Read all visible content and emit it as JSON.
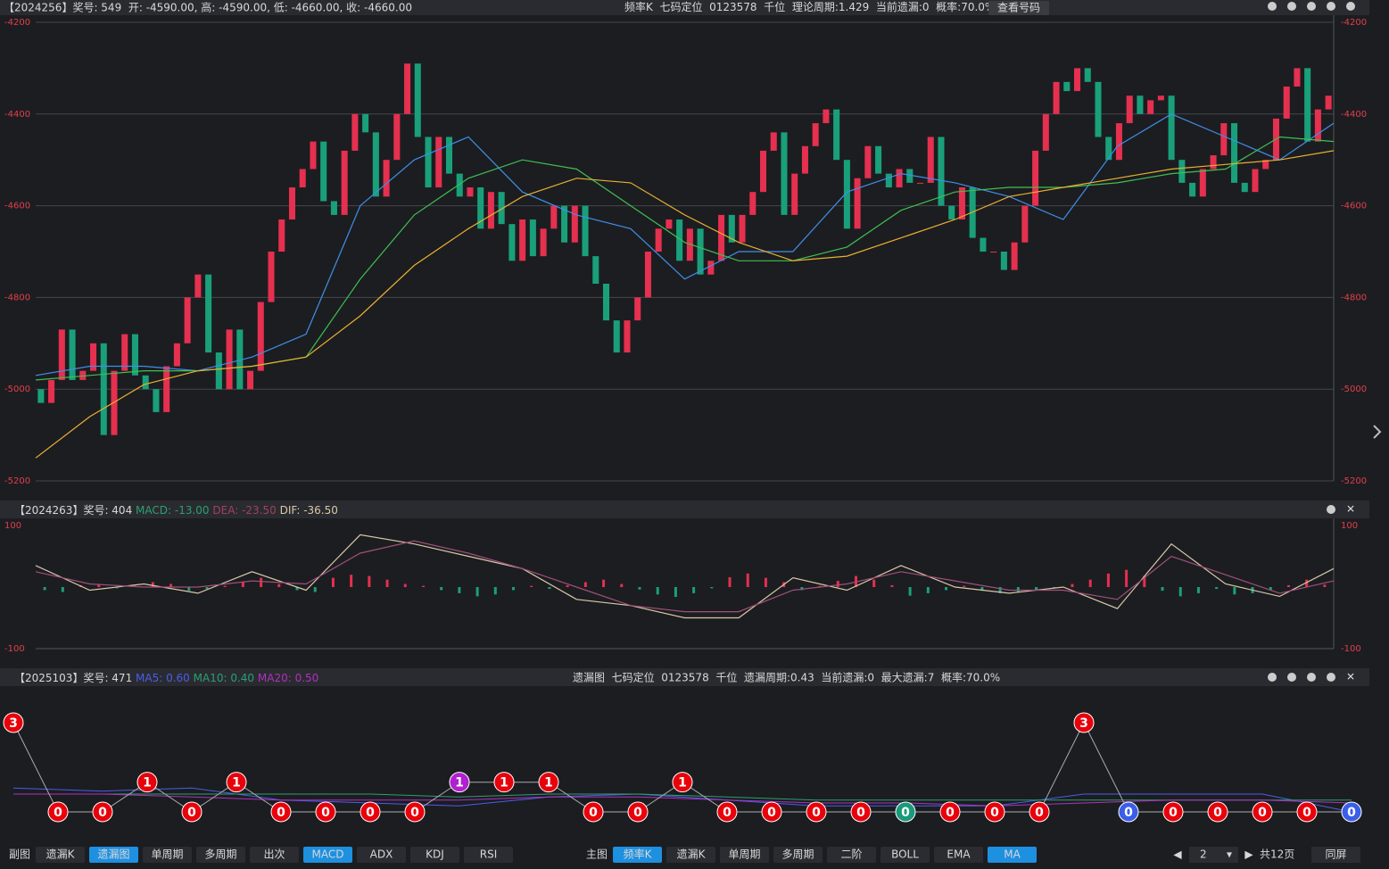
{
  "panels": [
    {
      "left": [
        "【2024256】奖号: 549  开: -4590.00, 高: -4590.00, 低: -4660.00, 收: -4660.00"
      ],
      "center": "频率K  七码定位  0123578  千位  理论周期:1.429  当前遗漏:0  概率:70.0%",
      "button": "查看号码"
    },
    {
      "left": [
        "【2024263】奖号: 404",
        "MACD: -13.00",
        "DEA: -23.50",
        "DIF: -36.50"
      ]
    },
    {
      "left": [
        "【2025103】奖号: 471",
        "MA5: 0.60",
        "MA10: 0.40",
        "MA20: 0.50"
      ],
      "center": "遗漏图  七码定位  0123578  千位  遗漏周期:0.43  当前遗漏:0  最大遗漏:7  概率:70.0%"
    }
  ],
  "chart_data": [
    {
      "type": "candlestick",
      "ylim": [
        -5200,
        -4200
      ],
      "yticks": [
        -4200,
        -4400,
        -4600,
        -4800,
        -5000,
        -5200
      ],
      "grid": true,
      "up_color": "#e5304f",
      "down_color": "#19a07a",
      "open": [
        -5000,
        -5030,
        -4980,
        -4870,
        -4980,
        -4960,
        -4900,
        -5100,
        -4960,
        -4880,
        -4970,
        -5000,
        -5050,
        -4950,
        -4900,
        -4800,
        -4750,
        -4920,
        -5000,
        -4870,
        -5000,
        -4960,
        -4810,
        -4700,
        -4630,
        -4560,
        -4520,
        -4460,
        -4590,
        -4620,
        -4480,
        -4400,
        -4440,
        -4580,
        -4500,
        -4400,
        -4290,
        -4450,
        -4560,
        -4450,
        -4530,
        -4580,
        -4560,
        -4650,
        -4570,
        -4640,
        -4720,
        -4630,
        -4710,
        -4650,
        -4600,
        -4680,
        -4600,
        -4710,
        -4770,
        -4850,
        -4920,
        -4850,
        -4800,
        -4700,
        -4650,
        -4630,
        -4720,
        -4650,
        -4750,
        -4720,
        -4620,
        -4680,
        -4620,
        -4570,
        -4480,
        -4440,
        -4620,
        -4530,
        -4470,
        -4420,
        -4390,
        -4500,
        -4650,
        -4540,
        -4470,
        -4530,
        -4560,
        -4520,
        -4550,
        -4550,
        -4450,
        -4600,
        -4630,
        -4560,
        -4670,
        -4700,
        -4700,
        -4740,
        -4680,
        -4600,
        -4480,
        -4400,
        -4330,
        -4350,
        -4300,
        -4330,
        -4450,
        -4500,
        -4420,
        -4360,
        -4400,
        -4370,
        -4360,
        -4500,
        -4550,
        -4580,
        -4520,
        -4490,
        -4420,
        -4550,
        -4570,
        -4520,
        -4500,
        -4410,
        -4340,
        -4300,
        -4460,
        -4390
      ],
      "close": [
        -5030,
        -4980,
        -4870,
        -4980,
        -4960,
        -4900,
        -5100,
        -4960,
        -4880,
        -4970,
        -5000,
        -5050,
        -4950,
        -4900,
        -4800,
        -4750,
        -4920,
        -5000,
        -4870,
        -5000,
        -4960,
        -4810,
        -4700,
        -4630,
        -4560,
        -4520,
        -4460,
        -4590,
        -4620,
        -4480,
        -4400,
        -4440,
        -4580,
        -4500,
        -4400,
        -4290,
        -4450,
        -4560,
        -4450,
        -4530,
        -4580,
        -4560,
        -4650,
        -4570,
        -4640,
        -4720,
        -4630,
        -4710,
        -4650,
        -4600,
        -4680,
        -4600,
        -4710,
        -4770,
        -4850,
        -4920,
        -4850,
        -4800,
        -4700,
        -4650,
        -4630,
        -4720,
        -4650,
        -4750,
        -4720,
        -4620,
        -4680,
        -4620,
        -4570,
        -4480,
        -4440,
        -4620,
        -4530,
        -4470,
        -4420,
        -4390,
        -4500,
        -4650,
        -4540,
        -4470,
        -4530,
        -4560,
        -4520,
        -4550,
        -4550,
        -4450,
        -4600,
        -4630,
        -4560,
        -4670,
        -4700,
        -4700,
        -4740,
        -4680,
        -4600,
        -4480,
        -4400,
        -4330,
        -4350,
        -4300,
        -4330,
        -4450,
        -4500,
        -4420,
        -4360,
        -4400,
        -4370,
        -4360,
        -4500,
        -4550,
        -4580,
        -4520,
        -4490,
        -4420,
        -4550,
        -4570,
        -4520,
        -4500,
        -4410,
        -4340,
        -4300,
        -4460,
        -4390,
        -4360
      ],
      "lines": [
        {
          "color": "#3f8fe8",
          "values": [
            -4970,
            -4950,
            -4950,
            -4960,
            -4930,
            -4880,
            -4600,
            -4500,
            -4450,
            -4570,
            -4620,
            -4650,
            -4760,
            -4700,
            -4700,
            -4570,
            -4530,
            -4550,
            -4580,
            -4630,
            -4470,
            -4400,
            -4450,
            -4500,
            -4420
          ]
        },
        {
          "color": "#3fc050",
          "values": [
            -4980,
            -4970,
            -4960,
            -4960,
            -4950,
            -4930,
            -4760,
            -4620,
            -4540,
            -4500,
            -4520,
            -4600,
            -4680,
            -4720,
            -4720,
            -4690,
            -4610,
            -4570,
            -4560,
            -4560,
            -4550,
            -4530,
            -4520,
            -4450,
            -4460
          ]
        },
        {
          "color": "#e8b030",
          "values": [
            -5150,
            -5060,
            -4990,
            -4960,
            -4950,
            -4930,
            -4840,
            -4730,
            -4650,
            -4580,
            -4540,
            -4550,
            -4620,
            -4680,
            -4720,
            -4710,
            -4670,
            -4630,
            -4580,
            -4560,
            -4540,
            -4520,
            -4510,
            -4500,
            -4480
          ]
        }
      ]
    },
    {
      "type": "macd",
      "ylim": [
        -100,
        100
      ],
      "yticks": [
        100,
        -100
      ],
      "up_color": "#e5304f",
      "down_color": "#19a07a",
      "values": [
        -5,
        -8,
        3,
        5,
        -2,
        2,
        8,
        5,
        -6,
        -3,
        2,
        8,
        15,
        5,
        -5,
        -8,
        15,
        20,
        18,
        12,
        5,
        2,
        -5,
        -10,
        -15,
        -12,
        -5,
        2,
        -3,
        3,
        8,
        12,
        5,
        -4,
        -12,
        -16,
        -10,
        -2,
        16,
        22,
        15,
        8,
        -5,
        2,
        10,
        18,
        12,
        3,
        -14,
        -10,
        -5,
        2,
        -6,
        -10,
        -8,
        -5,
        -2,
        5,
        12,
        22,
        28,
        18,
        -6,
        -15,
        -10,
        -3,
        -12,
        -10,
        -5,
        3,
        12,
        4
      ],
      "series": [
        {
          "color": "#d8c8a8",
          "values": [
            35,
            -5,
            5,
            -10,
            25,
            -5,
            85,
            70,
            50,
            30,
            -20,
            -30,
            -50,
            -50,
            15,
            -5,
            35,
            0,
            -10,
            0,
            -35,
            70,
            5,
            -15,
            30
          ]
        },
        {
          "color": "#a0507a",
          "values": [
            25,
            5,
            0,
            0,
            10,
            5,
            55,
            75,
            55,
            30,
            0,
            -30,
            -40,
            -40,
            -5,
            5,
            25,
            10,
            -5,
            -5,
            -20,
            50,
            20,
            -10,
            10
          ]
        }
      ]
    },
    {
      "type": "miss",
      "ylim": [
        0,
        3
      ],
      "values": [
        3,
        0,
        0,
        1,
        0,
        1,
        0,
        0,
        0,
        0,
        1,
        1,
        1,
        0,
        0,
        1,
        0,
        0,
        0,
        0,
        0,
        0,
        0,
        0,
        3,
        0,
        0,
        0,
        0,
        0,
        0
      ],
      "colors": [
        "#e8000b",
        "#e8000b",
        "#e8000b",
        "#e8000b",
        "#e8000b",
        "#e8000b",
        "#e8000b",
        "#e8000b",
        "#e8000b",
        "#e8000b",
        "#b01fd0",
        "#e8000b",
        "#e8000b",
        "#e8000b",
        "#e8000b",
        "#e8000b",
        "#e8000b",
        "#e8000b",
        "#e8000b",
        "#e8000b",
        "#1a9a7a",
        "#e8000b",
        "#e8000b",
        "#e8000b",
        "#e8000b",
        "#3a5ee8",
        "#e8000b",
        "#e8000b",
        "#e8000b",
        "#e8000b",
        "#3a5ee8"
      ],
      "lines": [
        {
          "color": "#4a5ee8",
          "values": [
            0.8,
            0.7,
            0.8,
            0.4,
            0.3,
            0.2,
            0.5,
            0.6,
            0.4,
            0.2,
            0.2,
            0.2,
            0.6,
            0.6,
            0.6,
            0
          ]
        },
        {
          "color": "#2aa070",
          "values": [
            0.6,
            0.6,
            0.6,
            0.6,
            0.6,
            0.5,
            0.6,
            0.6,
            0.5,
            0.4,
            0.4,
            0.4,
            0.4,
            0.4,
            0.4,
            0.4
          ]
        },
        {
          "color": "#b030c0",
          "values": [
            0.6,
            0.6,
            0.5,
            0.4,
            0.4,
            0.4,
            0.5,
            0.5,
            0.4,
            0.3,
            0.3,
            0.2,
            0.3,
            0.4,
            0.4,
            0.3
          ]
        }
      ]
    }
  ],
  "toolbar": {
    "left": {
      "label": "副图",
      "tabs": [
        {
          "text": "遗漏K",
          "active": false
        },
        {
          "text": "遗漏图",
          "active": true
        },
        {
          "text": "单周期",
          "active": false
        },
        {
          "text": "多周期",
          "active": false
        },
        {
          "text": "出次",
          "active": false
        },
        {
          "text": "MACD",
          "active": true
        },
        {
          "text": "ADX",
          "active": false
        },
        {
          "text": "KDJ",
          "active": false
        },
        {
          "text": "RSI",
          "active": false
        }
      ]
    },
    "right": {
      "label": "主图",
      "tabs": [
        {
          "text": "频率K",
          "active": true
        },
        {
          "text": "遗漏K",
          "active": false
        },
        {
          "text": "单周期",
          "active": false
        },
        {
          "text": "多周期",
          "active": false
        },
        {
          "text": "二阶",
          "active": false
        },
        {
          "text": "BOLL",
          "active": false
        },
        {
          "text": "EMA",
          "active": false
        },
        {
          "text": "MA",
          "active": true
        }
      ]
    },
    "page": "2",
    "total": "共12页",
    "split": "同屏"
  }
}
